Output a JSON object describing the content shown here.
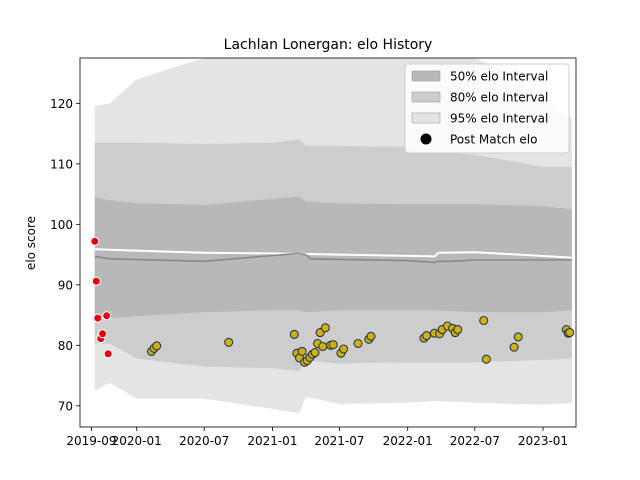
{
  "chart_data": {
    "type": "line",
    "title": "Lachlan Lonergan: elo History",
    "xlabel": "",
    "ylabel": "elo score",
    "xlim": [
      "2019-08-01",
      "2023-03-31"
    ],
    "ylim": [
      66.5,
      127.5
    ],
    "x_ticks": [
      {
        "date": "2019-09-01",
        "label": "2019-09"
      },
      {
        "date": "2020-01-01",
        "label": "2020-01"
      },
      {
        "date": "2020-07-01",
        "label": "2020-07"
      },
      {
        "date": "2021-01-01",
        "label": "2021-01"
      },
      {
        "date": "2021-07-01",
        "label": "2021-07"
      },
      {
        "date": "2022-01-01",
        "label": "2022-01"
      },
      {
        "date": "2022-07-01",
        "label": "2022-07"
      },
      {
        "date": "2023-01-01",
        "label": "2023-01"
      }
    ],
    "y_ticks": [
      70,
      80,
      90,
      100,
      110,
      120
    ],
    "grid": false,
    "legend_position": "top-right",
    "colors": {
      "band_95": "#e4e4e4",
      "band_80": "#cdcdcd",
      "band_50": "#b8b8b8",
      "mean_line": "#888888",
      "white_line": "#ffffff",
      "red_point": "#e8000b",
      "yellow_point": "#d4b000",
      "point_edge": "#1f3a55"
    },
    "legend": [
      {
        "label": "50% elo Interval",
        "kind": "band",
        "color": "#b8b8b8"
      },
      {
        "label": "80% elo Interval",
        "kind": "band",
        "color": "#cdcdcd"
      },
      {
        "label": "95% elo Interval",
        "kind": "band",
        "color": "#e4e4e4"
      },
      {
        "label": "Post Match elo",
        "kind": "marker",
        "color": "#000000"
      }
    ],
    "bands": {
      "x": [
        "2019-09-10",
        "2019-10-20",
        "2020-01-01",
        "2020-07-01",
        "2021-01-01",
        "2021-03-15",
        "2021-04-01",
        "2021-07-01",
        "2022-01-01",
        "2022-03-15",
        "2022-07-01",
        "2022-10-01",
        "2023-01-01",
        "2023-03-20"
      ],
      "lower95": [
        72.5,
        73.8,
        71.2,
        71.2,
        69.5,
        68.8,
        71.5,
        70.3,
        70.5,
        70.8,
        70.5,
        70.3,
        70.2,
        70.4
      ],
      "upper95": [
        119.6,
        120.0,
        124.0,
        127.5,
        127.5,
        127.5,
        127.5,
        127.5,
        127.5,
        127.5,
        127.5,
        125.0,
        121.0,
        117.5
      ],
      "lower80": [
        80.3,
        80.3,
        77.8,
        76.5,
        76.2,
        75.8,
        77.5,
        77.0,
        77.2,
        77.2,
        77.2,
        77.4,
        77.6,
        77.8
      ],
      "upper80": [
        113.5,
        113.5,
        113.5,
        113.3,
        113.5,
        114.0,
        113.0,
        113.0,
        112.8,
        112.0,
        111.5,
        110.5,
        109.5,
        109.5
      ],
      "lower50": [
        85.0,
        84.5,
        84.8,
        85.5,
        85.8,
        85.8,
        85.5,
        85.8,
        85.8,
        85.8,
        85.5,
        85.5,
        85.5,
        85.8
      ],
      "upper50": [
        104.5,
        104.0,
        103.5,
        103.2,
        104.2,
        104.6,
        103.8,
        103.5,
        103.3,
        103.3,
        103.3,
        103.2,
        103.0,
        102.5
      ]
    },
    "mean_line": {
      "x": [
        "2019-09-10",
        "2019-10-20",
        "2020-07-01",
        "2021-03-10",
        "2021-04-01",
        "2021-04-15",
        "2021-07-01",
        "2022-01-01",
        "2022-03-15",
        "2022-03-25",
        "2022-05-01",
        "2022-07-01",
        "2023-03-20"
      ],
      "y": [
        94.7,
        94.3,
        93.9,
        95.2,
        95.0,
        94.3,
        94.2,
        94.0,
        93.7,
        93.9,
        93.9,
        94.1,
        94.1
      ]
    },
    "upper_white_line": {
      "x": [
        "2019-09-10",
        "2019-10-20",
        "2020-07-01",
        "2021-01-01",
        "2021-07-01",
        "2022-03-15",
        "2022-03-25",
        "2022-07-01",
        "2023-03-20"
      ],
      "y": [
        95.9,
        95.8,
        95.3,
        95.2,
        95.0,
        94.7,
        95.3,
        95.4,
        94.5
      ]
    },
    "red_points": {
      "x": [
        "2019-09-10",
        "2019-09-14",
        "2019-09-18",
        "2019-09-26",
        "2019-10-01",
        "2019-10-12",
        "2019-10-16"
      ],
      "y": [
        97.2,
        90.6,
        84.5,
        81.1,
        81.9,
        84.9,
        78.6
      ]
    },
    "yellow_points": {
      "x": [
        "2020-02-10",
        "2020-02-17",
        "2020-02-24",
        "2020-09-05",
        "2021-03-01",
        "2021-03-08",
        "2021-03-15",
        "2021-03-22",
        "2021-03-29",
        "2021-04-05",
        "2021-04-12",
        "2021-04-19",
        "2021-04-26",
        "2021-05-03",
        "2021-05-10",
        "2021-05-17",
        "2021-05-24",
        "2021-06-07",
        "2021-06-14",
        "2021-07-05",
        "2021-07-12",
        "2021-08-20",
        "2021-09-18",
        "2021-09-24",
        "2022-02-14",
        "2022-02-21",
        "2022-03-14",
        "2022-03-28",
        "2022-04-04",
        "2022-04-18",
        "2022-05-02",
        "2022-05-09",
        "2022-05-16",
        "2022-07-25",
        "2022-08-01",
        "2022-10-15",
        "2022-10-26",
        "2023-03-05",
        "2023-03-10",
        "2023-03-14"
      ],
      "y": [
        79.0,
        79.5,
        79.9,
        80.5,
        81.8,
        78.7,
        77.9,
        79.0,
        77.2,
        77.5,
        78.0,
        78.5,
        78.8,
        80.3,
        82.1,
        79.8,
        82.9,
        80.0,
        80.1,
        78.7,
        79.4,
        80.3,
        81.0,
        81.5,
        81.2,
        81.6,
        82.0,
        81.9,
        82.6,
        83.2,
        82.8,
        82.1,
        82.6,
        84.1,
        77.7,
        79.7,
        81.4,
        82.6,
        82.0,
        82.1
      ]
    }
  }
}
